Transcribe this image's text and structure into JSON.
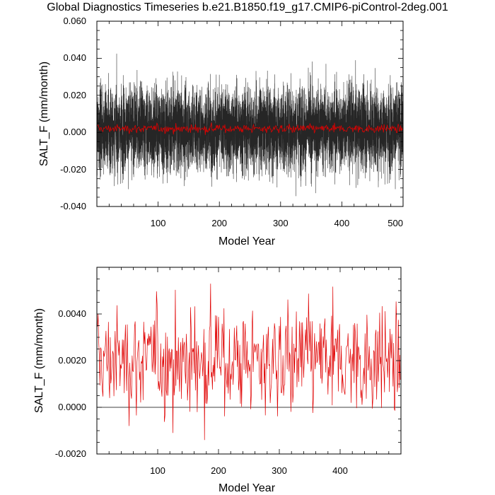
{
  "title": "Global Diagnostics Timeseries b.e21.B1850.f19_g17.CMIP6-piControl-2deg.001",
  "colors": {
    "monthly": "#000000",
    "annual": "#e00000",
    "background": "#ffffff"
  },
  "chart_data": [
    {
      "type": "line",
      "xlabel": "Model Year",
      "ylabel": "SALT_F (mm/month)",
      "xlim": [
        0,
        500
      ],
      "ylim": [
        -0.04,
        0.06
      ],
      "xticks": [
        "100",
        "200",
        "300",
        "400",
        "500"
      ],
      "yticks": [
        "-0.040",
        "-0.020",
        "0.000",
        "0.020",
        "0.040",
        "0.060"
      ],
      "grid": false,
      "series": [
        {
          "type": "line",
          "color": "#000000",
          "resolution": "monthly",
          "mean": 0.002,
          "envelope_min": -0.035,
          "envelope_max": 0.052
        },
        {
          "type": "line",
          "color": "#e00000",
          "resolution": "annual",
          "mean": 0.002,
          "min": -0.0014,
          "max": 0.0057
        }
      ]
    },
    {
      "type": "line",
      "xlabel": "Model Year",
      "ylabel": "SALT_F (mm/month)",
      "xlim": [
        0,
        500
      ],
      "ylim": [
        -0.002,
        0.006
      ],
      "xticks": [
        "100",
        "200",
        "300",
        "400"
      ],
      "yticks": [
        "-0.0020",
        "0.0000",
        "0.0020",
        "0.0040"
      ],
      "grid": false,
      "reference_line": 0,
      "series": [
        {
          "type": "line",
          "color": "#e00000",
          "resolution": "annual",
          "mean": 0.002,
          "min": -0.0014,
          "max": 0.0057
        }
      ]
    }
  ]
}
